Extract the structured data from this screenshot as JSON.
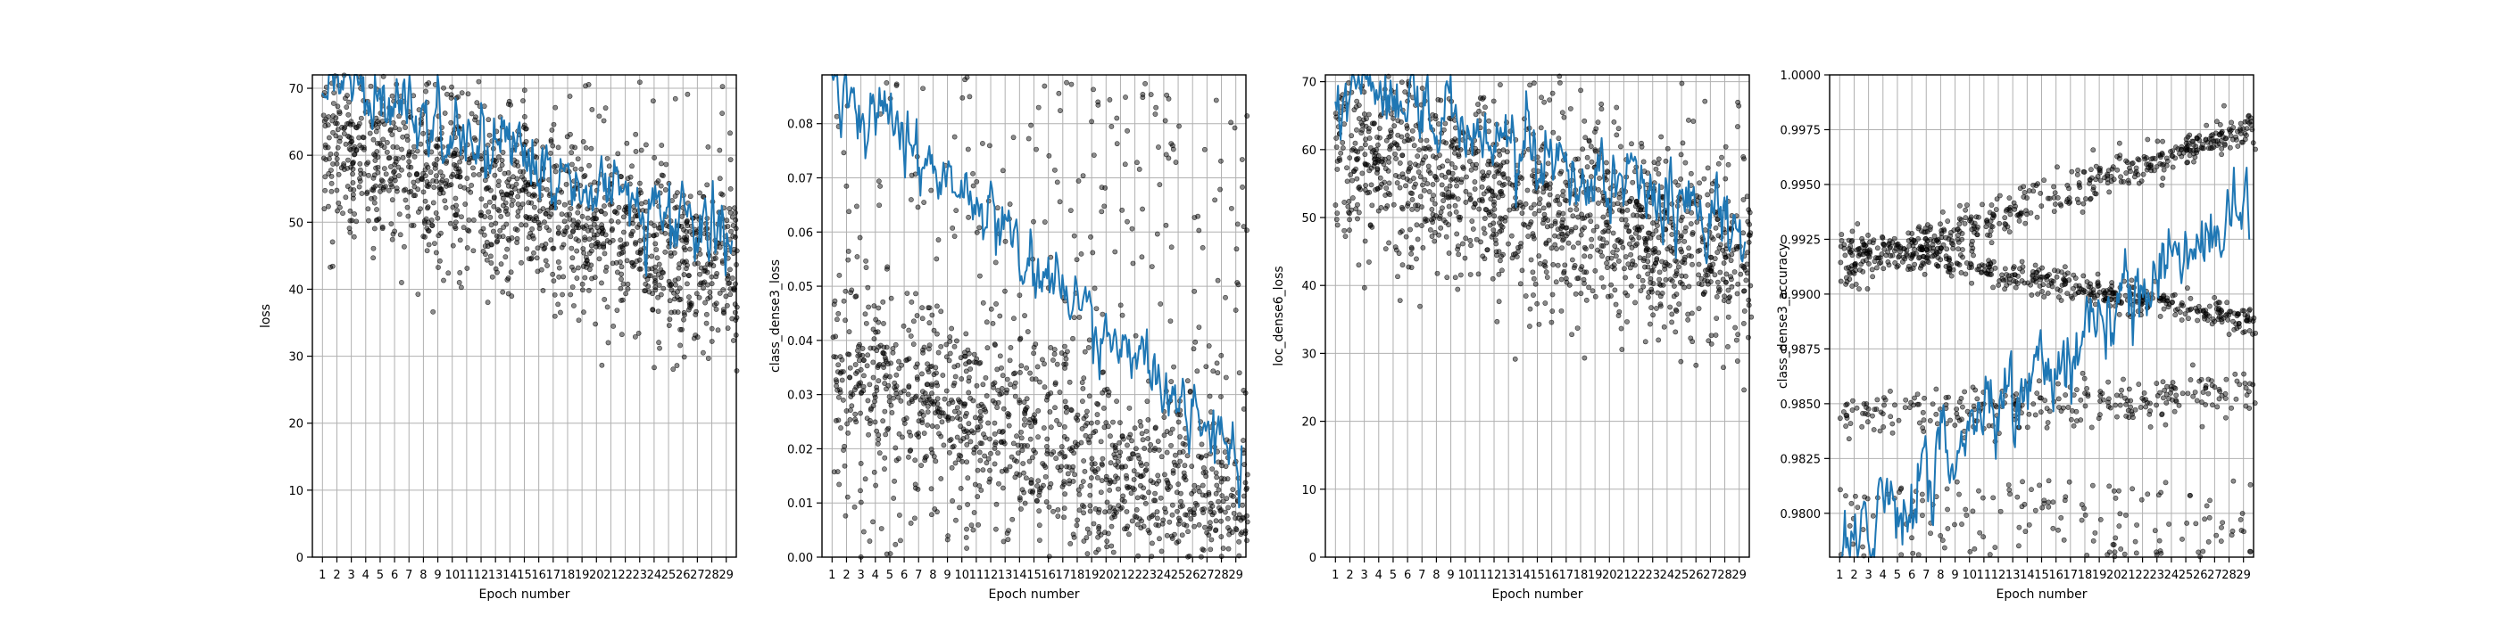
{
  "figure": {
    "background": "#ffffff"
  },
  "style": {
    "line_color": "#1f77b4",
    "point_color": "#000000",
    "grid_color": "#b0b0b0"
  },
  "chart_data": [
    {
      "type": "scatter",
      "subtype": "scatter-with-line",
      "title": "",
      "xlabel": "Epoch number",
      "ylabel": "loss",
      "xticks": [
        1,
        2,
        3,
        4,
        5,
        6,
        7,
        8,
        9,
        10,
        11,
        12,
        13,
        14,
        15,
        16,
        17,
        18,
        19,
        20,
        21,
        22,
        23,
        24,
        25,
        26,
        27,
        28,
        29
      ],
      "xlim": [
        0.3,
        29.7
      ],
      "ylim": [
        0,
        72
      ],
      "yticks": [
        0,
        10,
        20,
        30,
        40,
        50,
        60,
        70
      ],
      "ytick_labels": [
        "0",
        "10",
        "20",
        "30",
        "40",
        "50",
        "60",
        "70"
      ],
      "grid": true,
      "legend": "none",
      "scatter_trend_start": 63,
      "scatter_trend_end": 43,
      "scatter_spread": 7,
      "line_trend_start": 72,
      "line_trend_end": 47,
      "line_noise": 3.5
    },
    {
      "type": "scatter",
      "subtype": "scatter-with-line",
      "title": "",
      "xlabel": "Epoch number",
      "ylabel": "class_dense3_loss",
      "xticks": [
        1,
        2,
        3,
        4,
        5,
        6,
        7,
        8,
        9,
        10,
        11,
        12,
        13,
        14,
        15,
        16,
        17,
        18,
        19,
        20,
        21,
        22,
        23,
        24,
        25,
        26,
        27,
        28,
        29
      ],
      "xlim": [
        0.3,
        29.7
      ],
      "ylim": [
        0,
        0.089
      ],
      "yticks": [
        0,
        0.01,
        0.02,
        0.03,
        0.04,
        0.05,
        0.06,
        0.07,
        0.08
      ],
      "ytick_labels": [
        "0.00",
        "0.01",
        "0.02",
        "0.03",
        "0.04",
        "0.05",
        "0.06",
        "0.07",
        "0.08"
      ],
      "grid": true,
      "legend": "none",
      "scatter_trend_start": 0.035,
      "scatter_trend_end": 0.008,
      "scatter_spread": 0.009,
      "line_trend_start": 0.089,
      "line_trend_end": 0.018,
      "line_noise": 0.004
    },
    {
      "type": "scatter",
      "subtype": "scatter-with-line",
      "title": "",
      "xlabel": "Epoch number",
      "ylabel": "loc_dense6_loss",
      "xticks": [
        1,
        2,
        3,
        4,
        5,
        6,
        7,
        8,
        9,
        10,
        11,
        12,
        13,
        14,
        15,
        16,
        17,
        18,
        19,
        20,
        21,
        22,
        23,
        24,
        25,
        26,
        27,
        28,
        29
      ],
      "xlim": [
        0.3,
        29.7
      ],
      "ylim": [
        0,
        71
      ],
      "yticks": [
        0,
        10,
        20,
        30,
        40,
        50,
        60,
        70
      ],
      "ytick_labels": [
        "0",
        "10",
        "20",
        "30",
        "40",
        "50",
        "60",
        "70"
      ],
      "grid": true,
      "legend": "none",
      "scatter_trend_start": 60,
      "scatter_trend_end": 43,
      "scatter_spread": 7,
      "line_trend_start": 70,
      "line_trend_end": 48,
      "line_noise": 3.5
    },
    {
      "type": "scatter",
      "subtype": "scatter-with-line",
      "title": "",
      "xlabel": "Epoch number",
      "ylabel": "class_dense3_accuracy",
      "xticks": [
        1,
        2,
        3,
        4,
        5,
        6,
        7,
        8,
        9,
        10,
        11,
        12,
        13,
        14,
        15,
        16,
        17,
        18,
        19,
        20,
        21,
        22,
        23,
        24,
        25,
        26,
        27,
        28,
        29
      ],
      "xlim": [
        0.3,
        29.7
      ],
      "ylim": [
        0.978,
        1.0
      ],
      "yticks": [
        0.98,
        0.9825,
        0.985,
        0.9875,
        0.99,
        0.9925,
        0.995,
        0.9975,
        1.0
      ],
      "ytick_labels": [
        "0.9800",
        "0.9825",
        "0.9850",
        "0.9875",
        "0.9900",
        "0.9925",
        "0.9950",
        "0.9975",
        "1.0000"
      ],
      "grid": true,
      "legend": "none",
      "band_upper_start": 0.991,
      "band_upper_end": 0.9975,
      "band_middle_start": 0.9925,
      "band_middle_end": 0.9888,
      "band_lower_start": 0.9845,
      "band_lower_end": 0.9855,
      "line_trend_start": 0.978,
      "line_trend_end": 0.995,
      "line_noise": 0.0012
    }
  ]
}
